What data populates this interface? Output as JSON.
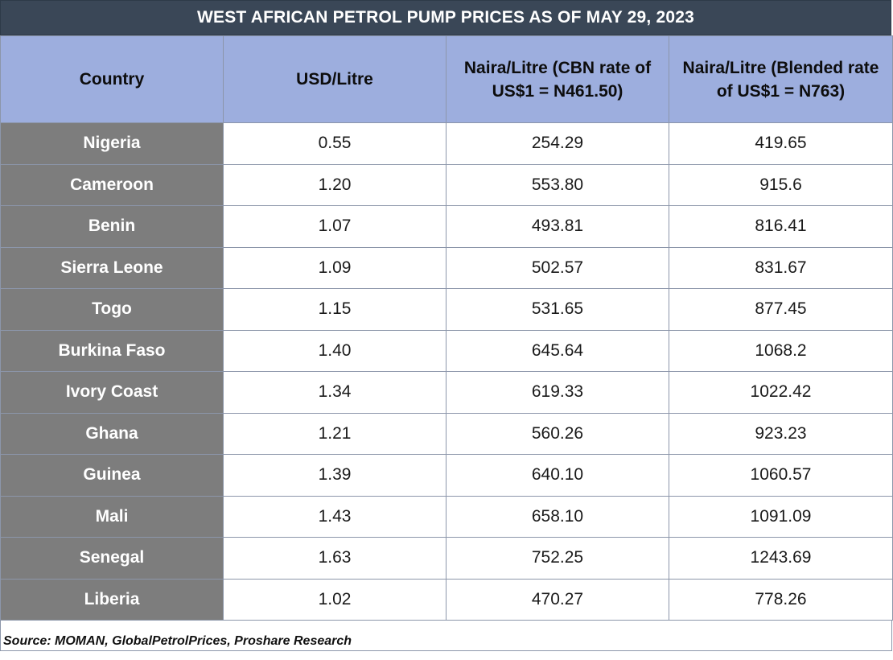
{
  "title": "WEST AFRICAN PETROL PUMP PRICES AS OF MAY 29, 2023",
  "columns": [
    "Country",
    "USD/Litre",
    "Naira/Litre (CBN rate of US$1 = N461.50)",
    "Naira/Litre (Blended rate of US$1 = N763)"
  ],
  "rows": [
    {
      "country": "Nigeria",
      "usd": "0.55",
      "naira_cbn": "254.29",
      "naira_blended": "419.65"
    },
    {
      "country": "Cameroon",
      "usd": "1.20",
      "naira_cbn": "553.80",
      "naira_blended": "915.6"
    },
    {
      "country": "Benin",
      "usd": "1.07",
      "naira_cbn": "493.81",
      "naira_blended": "816.41"
    },
    {
      "country": "Sierra Leone",
      "usd": "1.09",
      "naira_cbn": "502.57",
      "naira_blended": "831.67"
    },
    {
      "country": "Togo",
      "usd": "1.15",
      "naira_cbn": "531.65",
      "naira_blended": "877.45"
    },
    {
      "country": "Burkina Faso",
      "usd": "1.40",
      "naira_cbn": "645.64",
      "naira_blended": "1068.2"
    },
    {
      "country": "Ivory Coast",
      "usd": "1.34",
      "naira_cbn": "619.33",
      "naira_blended": "1022.42"
    },
    {
      "country": "Ghana",
      "usd": "1.21",
      "naira_cbn": "560.26",
      "naira_blended": "923.23"
    },
    {
      "country": "Guinea",
      "usd": "1.39",
      "naira_cbn": "640.10",
      "naira_blended": "1060.57"
    },
    {
      "country": "Mali",
      "usd": "1.43",
      "naira_cbn": "658.10",
      "naira_blended": "1091.09"
    },
    {
      "country": "Senegal",
      "usd": "1.63",
      "naira_cbn": "752.25",
      "naira_blended": "1243.69"
    },
    {
      "country": "Liberia",
      "usd": "1.02",
      "naira_cbn": "470.27",
      "naira_blended": "778.26"
    }
  ],
  "source": "Source: MOMAN, GlobalPetrolPrices, Proshare Research",
  "colors": {
    "title_bg": "#3a4757",
    "header_bg": "#9daede",
    "country_bg": "#7d7d7d",
    "grid": "#8c96aa"
  }
}
